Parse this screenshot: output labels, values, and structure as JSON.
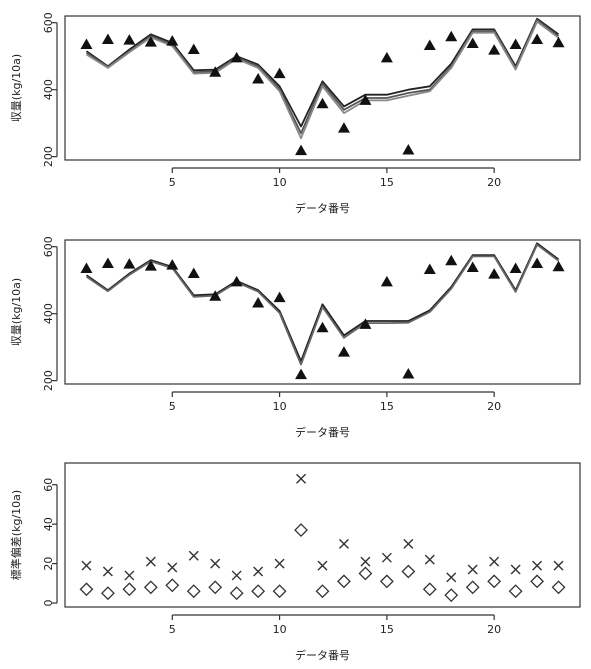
{
  "chart_data": [
    {
      "type": "line",
      "x": [
        1,
        2,
        3,
        4,
        5,
        6,
        7,
        8,
        9,
        10,
        11,
        12,
        13,
        14,
        15,
        16,
        17,
        18,
        19,
        20,
        21,
        22,
        23
      ],
      "xlabel": "データ番号",
      "ylabel": "収量(kg/10a)",
      "xlim": [
        0,
        24
      ],
      "ylim": [
        190,
        620
      ],
      "xticks": [
        5,
        10,
        15,
        20
      ],
      "yticks": [
        200,
        400,
        600
      ],
      "grid": false,
      "points": {
        "marker": "filled-triangle",
        "values": [
          535,
          550,
          548,
          542,
          545,
          520,
          452,
          495,
          432,
          448,
          218,
          358,
          285,
          368,
          495,
          220,
          532,
          558,
          538,
          518,
          535,
          550,
          540
        ]
      },
      "series": [
        {
          "color": "#222222",
          "values": [
            515,
            470,
            520,
            565,
            540,
            458,
            460,
            500,
            475,
            410,
            290,
            425,
            350,
            385,
            385,
            400,
            410,
            478,
            580,
            580,
            470,
            612,
            565
          ]
        },
        {
          "color": "#555555",
          "values": [
            510,
            468,
            515,
            560,
            535,
            452,
            455,
            497,
            470,
            402,
            270,
            418,
            340,
            375,
            375,
            390,
            400,
            470,
            575,
            575,
            465,
            608,
            560
          ]
        },
        {
          "color": "#888888",
          "values": [
            505,
            465,
            512,
            556,
            530,
            448,
            450,
            492,
            465,
            395,
            255,
            410,
            330,
            368,
            368,
            382,
            395,
            465,
            570,
            570,
            460,
            603,
            555
          ]
        }
      ]
    },
    {
      "type": "line",
      "x": [
        1,
        2,
        3,
        4,
        5,
        6,
        7,
        8,
        9,
        10,
        11,
        12,
        13,
        14,
        15,
        16,
        17,
        18,
        19,
        20,
        21,
        22,
        23
      ],
      "xlabel": "データ番号",
      "ylabel": "収量(kg/10a)",
      "xlim": [
        0,
        24
      ],
      "ylim": [
        190,
        620
      ],
      "xticks": [
        5,
        10,
        15,
        20
      ],
      "yticks": [
        200,
        400,
        600
      ],
      "grid": false,
      "points": {
        "marker": "filled-triangle",
        "values": [
          535,
          550,
          548,
          542,
          545,
          520,
          452,
          495,
          432,
          448,
          218,
          358,
          285,
          368,
          495,
          220,
          532,
          558,
          538,
          518,
          535,
          550,
          540
        ]
      },
      "series": [
        {
          "color": "#222222",
          "values": [
            515,
            470,
            520,
            560,
            540,
            455,
            458,
            498,
            470,
            408,
            258,
            428,
            335,
            378,
            378,
            378,
            410,
            480,
            575,
            575,
            470,
            610,
            562
          ]
        },
        {
          "color": "#666666",
          "values": [
            510,
            467,
            516,
            556,
            536,
            450,
            454,
            494,
            466,
            402,
            248,
            420,
            328,
            372,
            372,
            373,
            405,
            475,
            571,
            571,
            465,
            606,
            558
          ]
        }
      ]
    },
    {
      "type": "scatter",
      "x": [
        1,
        2,
        3,
        4,
        5,
        6,
        7,
        8,
        9,
        10,
        11,
        12,
        13,
        14,
        15,
        16,
        17,
        18,
        19,
        20,
        21,
        22,
        23
      ],
      "xlabel": "データ番号",
      "ylabel": "標準偏差(kg/10a)",
      "xlim": [
        0,
        24
      ],
      "ylim": [
        -2,
        71
      ],
      "xticks": [
        5,
        10,
        15,
        20
      ],
      "yticks": [
        0,
        20,
        40,
        60
      ],
      "grid": false,
      "series": [
        {
          "marker": "x",
          "values": [
            19,
            16,
            14,
            21,
            18,
            24,
            20,
            14,
            16,
            20,
            63,
            19,
            30,
            21,
            23,
            30,
            22,
            13,
            17,
            21,
            17,
            19,
            19
          ]
        },
        {
          "marker": "open-diamond",
          "values": [
            7,
            5,
            7,
            8,
            9,
            6,
            8,
            5,
            6,
            6,
            37,
            6,
            11,
            15,
            11,
            16,
            7,
            4,
            8,
            11,
            6,
            11,
            8
          ]
        }
      ]
    }
  ]
}
